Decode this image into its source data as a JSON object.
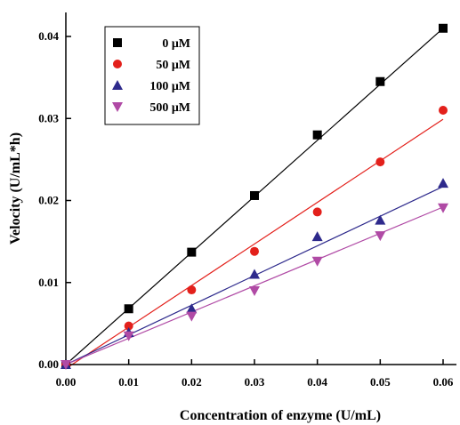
{
  "chart_data": {
    "type": "scatter",
    "xlabel": "Concentration of enzyme  (U/mL)",
    "ylabel": "Velocity  (U/mL*h)",
    "xlim": [
      0,
      0.06
    ],
    "ylim": [
      0,
      0.043
    ],
    "x_ticks": [
      "0.00",
      "0.01",
      "0.02",
      "0.03",
      "0.04",
      "0.05",
      "0.06"
    ],
    "y_ticks": [
      "0.00",
      "0.01",
      "0.02",
      "0.03",
      "0.04"
    ],
    "legend_position": "top-left",
    "grid": false,
    "series": [
      {
        "name": "0 μM",
        "marker": "square",
        "color": "#000000",
        "line_color": "#000000",
        "x": [
          0,
          0.01,
          0.02,
          0.03,
          0.04,
          0.05,
          0.06
        ],
        "y": [
          0,
          0.0068,
          0.0137,
          0.0206,
          0.028,
          0.0345,
          0.041
        ],
        "fit": [
          [
            0,
            0
          ],
          [
            0.06,
            0.041
          ]
        ]
      },
      {
        "name": "50 μM",
        "marker": "circle",
        "color": "#e3201b",
        "line_color": "#e3201b",
        "x": [
          0,
          0.01,
          0.02,
          0.03,
          0.04,
          0.05,
          0.06
        ],
        "y": [
          0,
          0.0047,
          0.0091,
          0.0138,
          0.0186,
          0.0247,
          0.031
        ],
        "fit": [
          [
            0,
            -0.0005
          ],
          [
            0.06,
            0.0299
          ]
        ]
      },
      {
        "name": "100 μM",
        "marker": "triangle-up",
        "color": "#2e2a8c",
        "line_color": "#2e2a8c",
        "x": [
          0,
          0.01,
          0.02,
          0.03,
          0.04,
          0.05,
          0.06
        ],
        "y": [
          0,
          0.0039,
          0.0068,
          0.011,
          0.0156,
          0.0176,
          0.0221
        ],
        "fit": [
          [
            0,
            0
          ],
          [
            0.06,
            0.0217
          ]
        ]
      },
      {
        "name": "500 μM",
        "marker": "triangle-down",
        "color": "#b04aa5",
        "line_color": "#b04aa5",
        "x": [
          0,
          0.01,
          0.02,
          0.03,
          0.04,
          0.05,
          0.06
        ],
        "y": [
          0,
          0.0035,
          0.0059,
          0.009,
          0.0126,
          0.0157,
          0.0191
        ],
        "fit": [
          [
            0,
            0
          ],
          [
            0.06,
            0.0192
          ]
        ]
      }
    ]
  }
}
